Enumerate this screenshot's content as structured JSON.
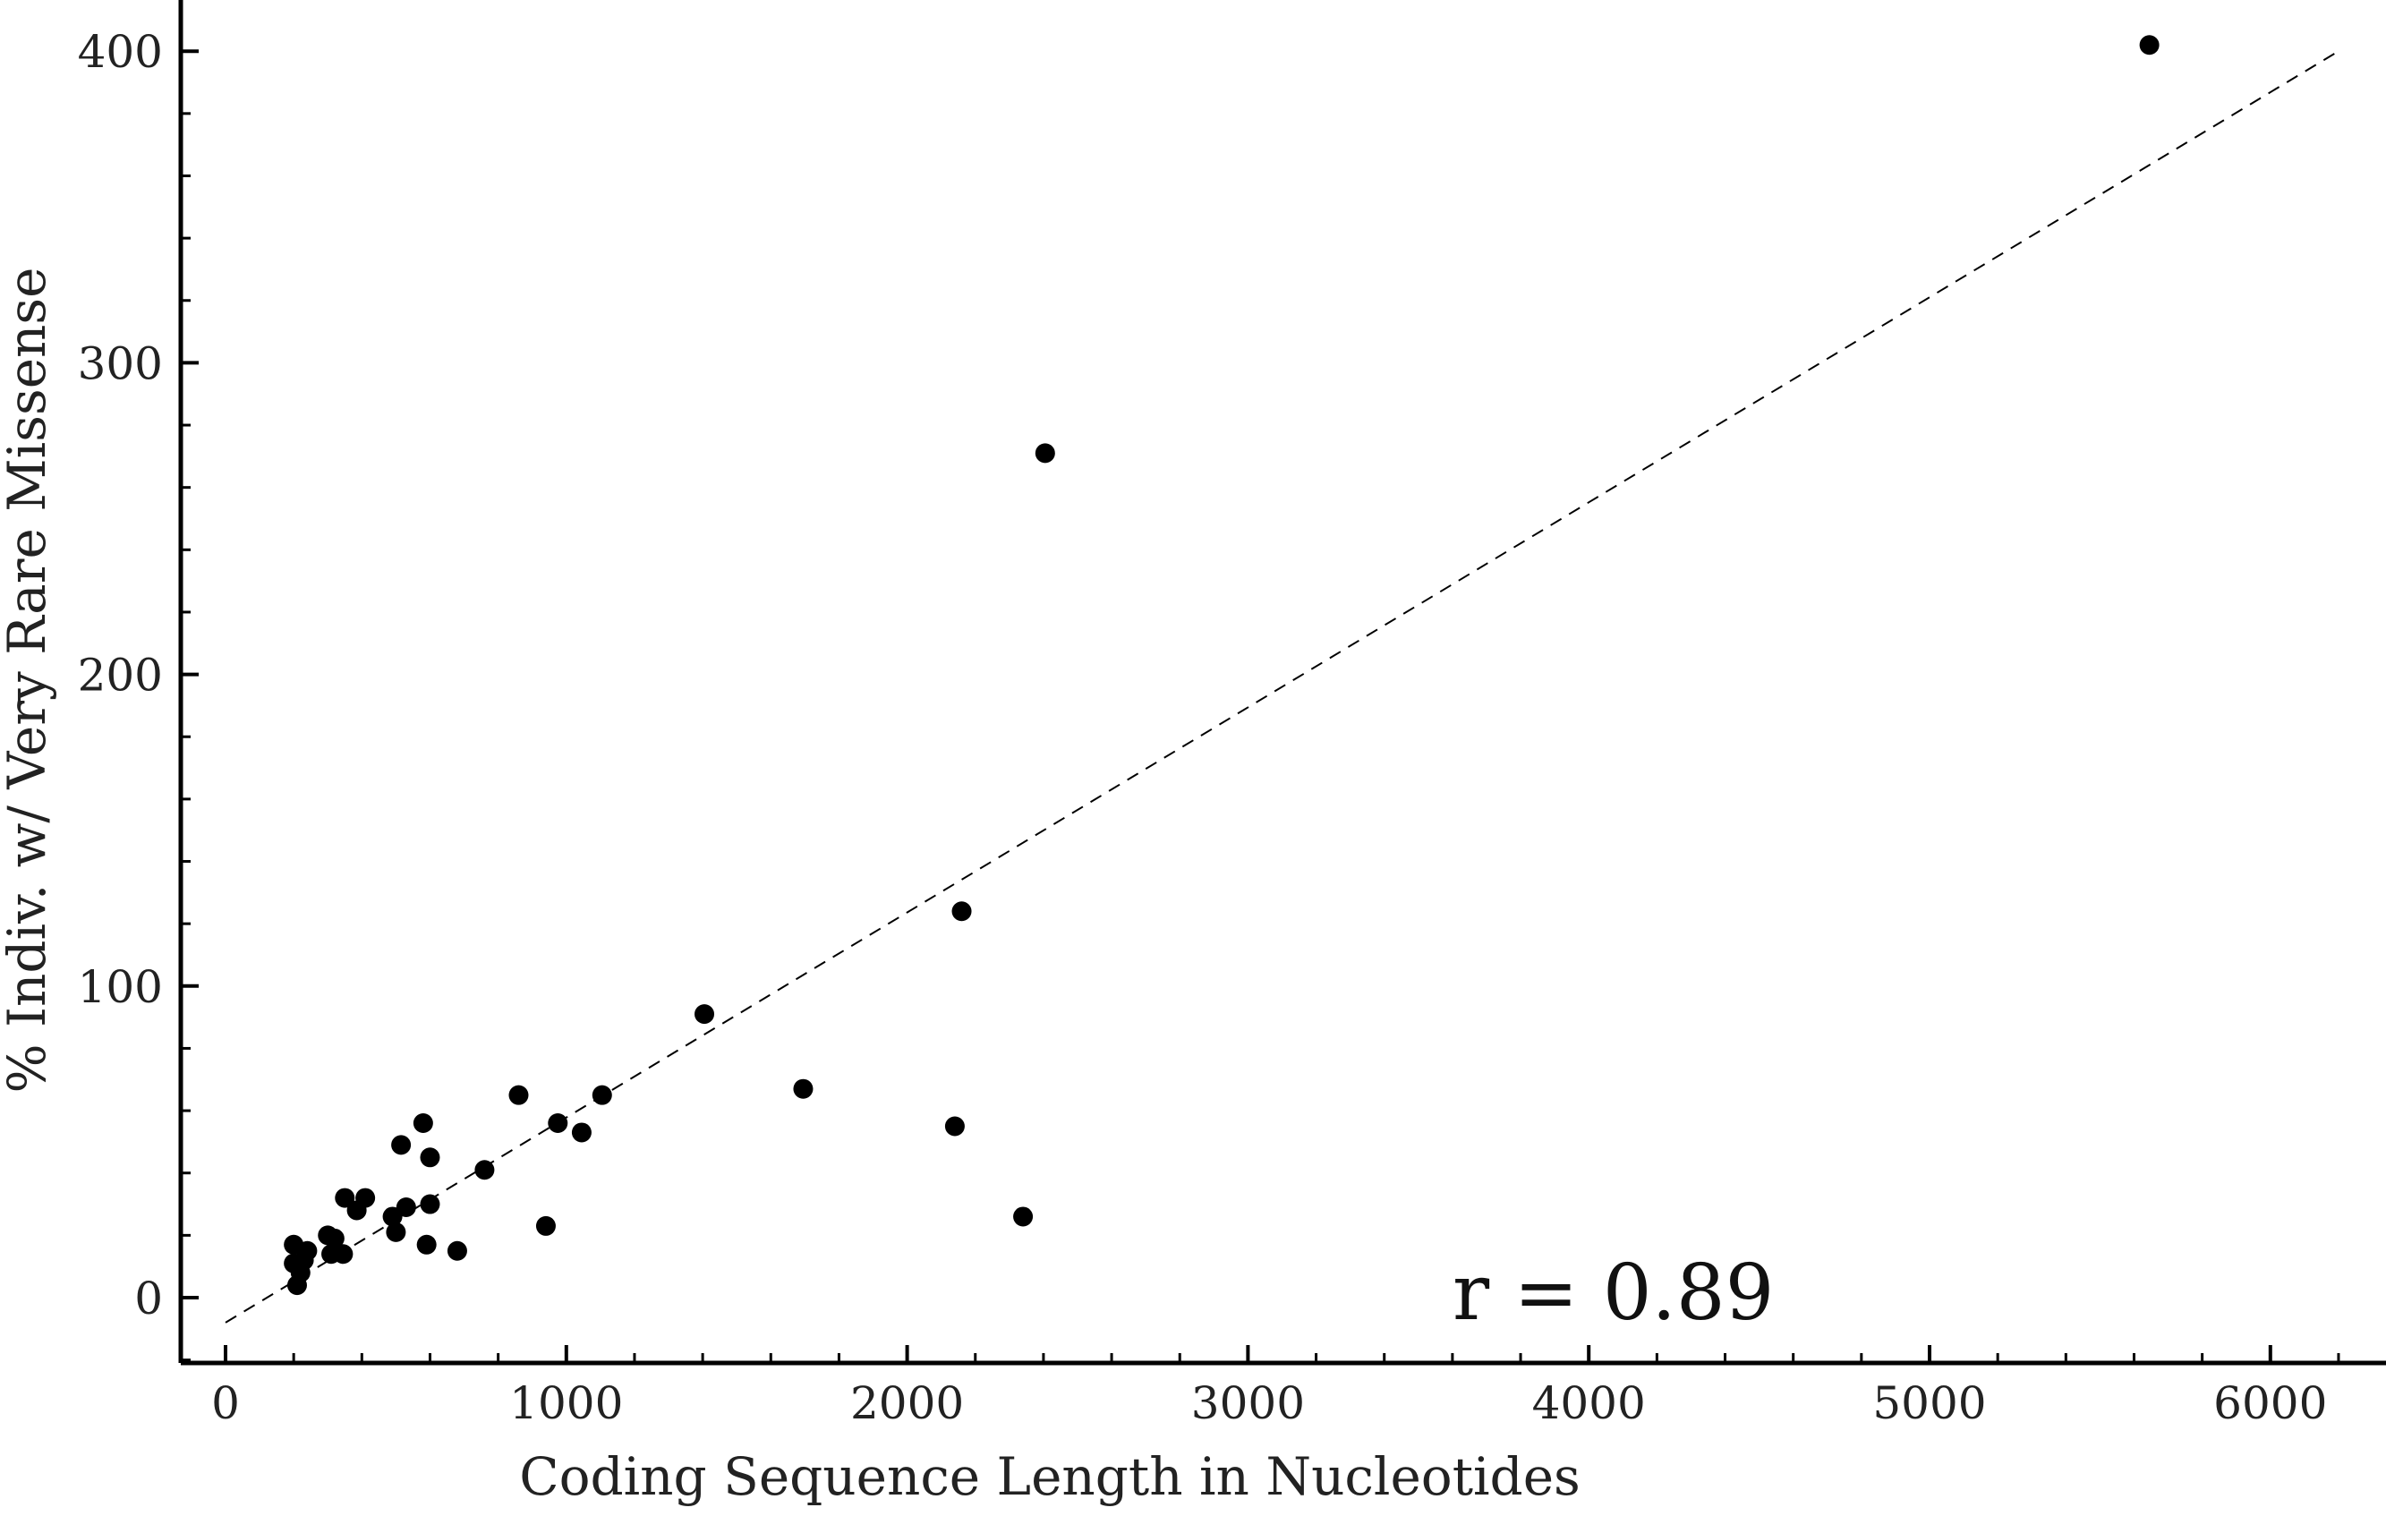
{
  "chart_data": {
    "type": "scatter",
    "title": "",
    "xlabel": "Coding Sequence Length in Nucleotides",
    "ylabel": "% Indiv. w/ Very Rare Missense",
    "xlim": [
      -130,
      6250
    ],
    "ylim": [
      -20,
      420
    ],
    "x_ticks": [
      0,
      1000,
      2000,
      3000,
      4000,
      5000,
      6000
    ],
    "y_ticks": [
      0,
      100,
      200,
      300,
      400
    ],
    "x_tick_labels": [
      "0",
      "1000",
      "2000",
      "3000",
      "4000",
      "5000",
      "6000"
    ],
    "y_tick_labels": [
      "0",
      "100",
      "200",
      "300",
      "400"
    ],
    "x_minor_step": 200,
    "y_minor_step": 20,
    "grid": false,
    "marker_color": "#000000",
    "points": [
      {
        "x": 200,
        "y": 17
      },
      {
        "x": 200,
        "y": 11
      },
      {
        "x": 210,
        "y": 4
      },
      {
        "x": 220,
        "y": 8
      },
      {
        "x": 230,
        "y": 12
      },
      {
        "x": 240,
        "y": 15
      },
      {
        "x": 300,
        "y": 20
      },
      {
        "x": 310,
        "y": 14
      },
      {
        "x": 320,
        "y": 19
      },
      {
        "x": 345,
        "y": 14
      },
      {
        "x": 350,
        "y": 32
      },
      {
        "x": 385,
        "y": 28
      },
      {
        "x": 410,
        "y": 32
      },
      {
        "x": 490,
        "y": 26
      },
      {
        "x": 500,
        "y": 21
      },
      {
        "x": 515,
        "y": 49
      },
      {
        "x": 530,
        "y": 29
      },
      {
        "x": 580,
        "y": 56
      },
      {
        "x": 590,
        "y": 17
      },
      {
        "x": 600,
        "y": 45
      },
      {
        "x": 600,
        "y": 30
      },
      {
        "x": 680,
        "y": 15
      },
      {
        "x": 760,
        "y": 41
      },
      {
        "x": 860,
        "y": 65
      },
      {
        "x": 940,
        "y": 23
      },
      {
        "x": 975,
        "y": 56
      },
      {
        "x": 1045,
        "y": 53
      },
      {
        "x": 1105,
        "y": 65
      },
      {
        "x": 1405,
        "y": 91
      },
      {
        "x": 1695,
        "y": 67
      },
      {
        "x": 2140,
        "y": 55
      },
      {
        "x": 2160,
        "y": 124
      },
      {
        "x": 2340,
        "y": 26
      },
      {
        "x": 2405,
        "y": 271
      },
      {
        "x": 5645,
        "y": 402
      }
    ],
    "fit_line": {
      "style": "dashed",
      "color": "#000000",
      "x": [
        0,
        6200
      ],
      "y": [
        -8,
        400
      ]
    },
    "annotations": [
      {
        "text": "r = 0.89",
        "x": 3600,
        "y": 0
      }
    ]
  }
}
